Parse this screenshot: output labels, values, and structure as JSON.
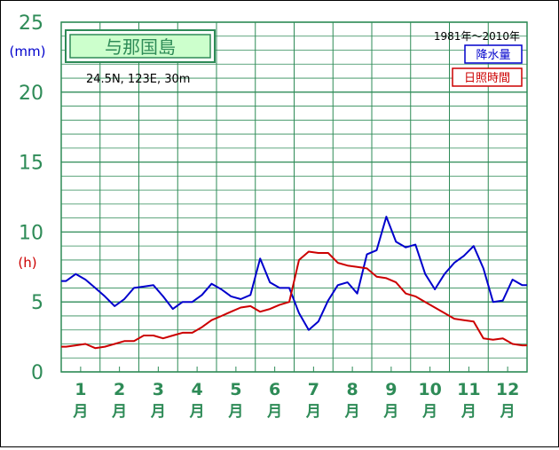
{
  "chart_data": {
    "type": "line",
    "title": "与那国島",
    "subtitle": "24.5N, 123E, 30m",
    "period": "1981年〜2010年",
    "units": {
      "precipitation": "(mm)",
      "sunshine": "(h)"
    },
    "ylim": [
      0,
      25
    ],
    "yticks": [
      "0",
      "5",
      "10",
      "15",
      "20",
      "25"
    ],
    "month_numbers": [
      "1",
      "2",
      "3",
      "4",
      "5",
      "6",
      "7",
      "8",
      "9",
      "10",
      "11",
      "12"
    ],
    "month_suffix": "月",
    "grid": true,
    "legend_position": "top-right",
    "series": [
      {
        "name": "降水量",
        "color": "#0000cc",
        "values": [
          6.5,
          7.0,
          6.6,
          6.0,
          5.4,
          4.7,
          5.2,
          6.0,
          6.1,
          6.2,
          5.4,
          4.5,
          5.0,
          5.0,
          5.5,
          6.3,
          5.9,
          5.4,
          5.2,
          5.5,
          8.1,
          6.4,
          6.0,
          6.0,
          4.2,
          3.0,
          3.6,
          5.1,
          6.2,
          6.4,
          5.6,
          8.4,
          8.7,
          11.1,
          9.3,
          8.9,
          9.1,
          7.0,
          5.9,
          7.0,
          7.8,
          8.3,
          9.0,
          7.4,
          5.0,
          5.1,
          6.6,
          6.2
        ]
      },
      {
        "name": "日照時間",
        "color": "#cc0000",
        "values": [
          1.8,
          1.9,
          2.0,
          1.7,
          1.8,
          2.0,
          2.2,
          2.2,
          2.6,
          2.6,
          2.4,
          2.6,
          2.8,
          2.8,
          3.2,
          3.7,
          4.0,
          4.3,
          4.6,
          4.7,
          4.3,
          4.5,
          4.8,
          5.0,
          8.0,
          8.6,
          8.5,
          8.5,
          7.8,
          7.6,
          7.5,
          7.4,
          6.8,
          6.7,
          6.4,
          5.6,
          5.4,
          5.0,
          4.6,
          4.2,
          3.8,
          3.7,
          3.6,
          2.4,
          2.3,
          2.4,
          2.0,
          1.9
        ]
      }
    ]
  }
}
